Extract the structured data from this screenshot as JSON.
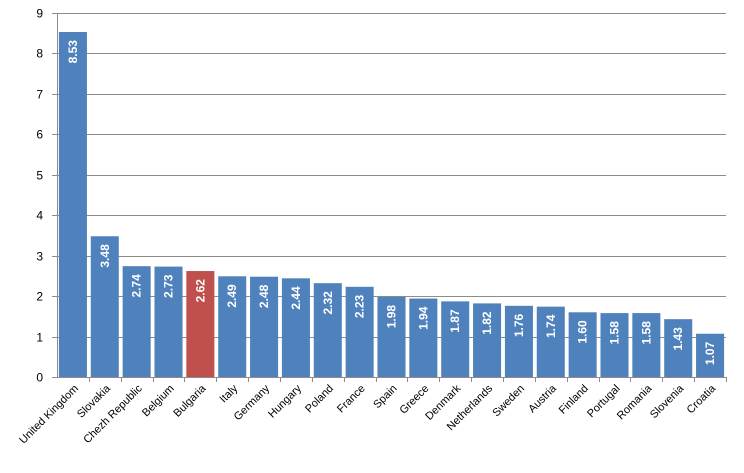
{
  "chart_data": {
    "type": "bar",
    "title": "",
    "xlabel": "",
    "ylabel": "",
    "ylim": [
      0,
      9
    ],
    "yticks": [
      "0",
      "1",
      "2",
      "3",
      "4",
      "5",
      "6",
      "7",
      "8",
      "9"
    ],
    "grid": true,
    "legend": "none",
    "categories": [
      "United Kingdom",
      "Slovakia",
      "Chezh Republic",
      "Belgium",
      "Bulgaria",
      "Italy",
      "Germany",
      "Hungary",
      "Poland",
      "France",
      "Spain",
      "Greece",
      "Denmark",
      "Netherlands",
      "Sweden",
      "Austria",
      "Finland",
      "Portugal",
      "Romania",
      "Slovenia",
      "Croatia"
    ],
    "values": [
      8.53,
      3.48,
      2.74,
      2.73,
      2.62,
      2.49,
      2.48,
      2.44,
      2.32,
      2.23,
      1.98,
      1.94,
      1.87,
      1.82,
      1.76,
      1.74,
      1.6,
      1.58,
      1.58,
      1.43,
      1.07
    ],
    "data_labels": [
      "8.53",
      "3.48",
      "2.74",
      "2.73",
      "2.62",
      "2.49",
      "2.48",
      "2.44",
      "2.32",
      "2.23",
      "1.98",
      "1.94",
      "1.87",
      "1.82",
      "1.76",
      "1.74",
      "1.60",
      "1.58",
      "1.58",
      "1.43",
      "1.07"
    ],
    "bar_color": "#4f81bd",
    "highlight_category": "Bulgaria",
    "highlight_color": "#c0504d",
    "gridline_color": "#8c8c8c"
  }
}
